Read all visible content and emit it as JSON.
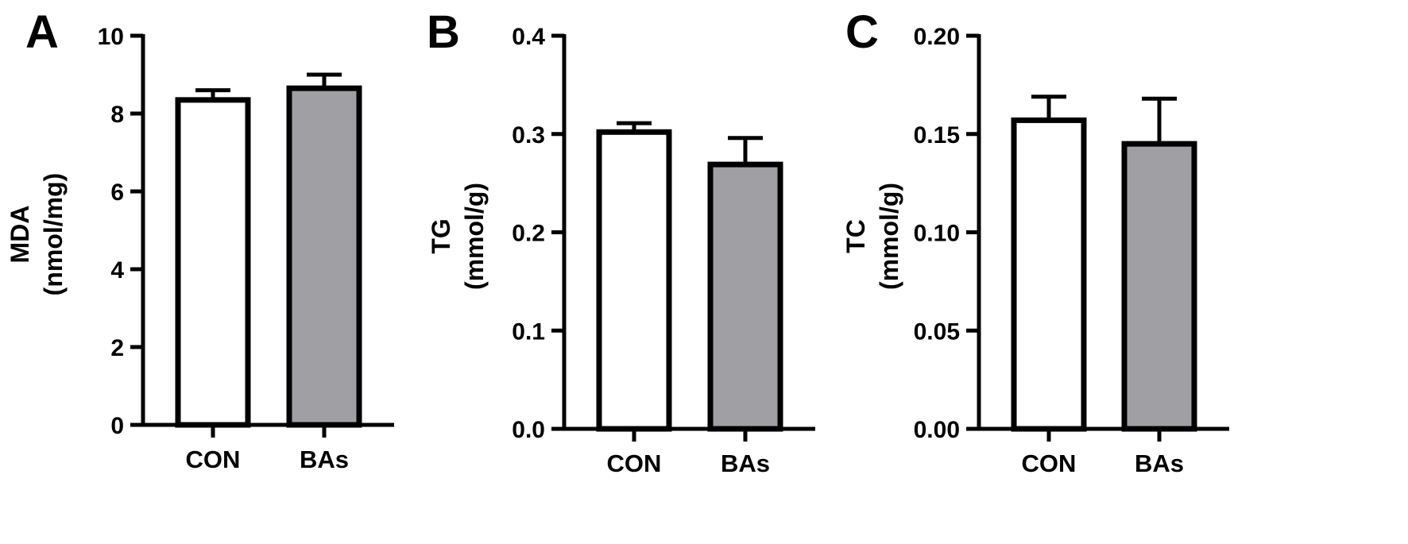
{
  "colors": {
    "axis": "#000000",
    "bar_outline": "#000000",
    "con_fill": "#ffffff",
    "bas_fill": "#a0a0a4",
    "background": "#ffffff"
  },
  "chart_data": [
    {
      "type": "bar",
      "panel": "A",
      "categories": [
        "CON",
        "BAs"
      ],
      "values": [
        8.35,
        8.65
      ],
      "errors": [
        0.25,
        0.35
      ],
      "ylabel": "MDA",
      "yunit": "(nmol/mg)",
      "ylim": [
        0,
        10
      ],
      "yticks": [
        "0",
        "2",
        "4",
        "6",
        "8",
        "10"
      ],
      "grid": false
    },
    {
      "type": "bar",
      "panel": "B",
      "categories": [
        "CON",
        "BAs"
      ],
      "values": [
        0.302,
        0.269
      ],
      "errors": [
        0.009,
        0.027
      ],
      "ylabel": "TG",
      "yunit": "(mmol/g)",
      "ylim": [
        0,
        0.4
      ],
      "yticks": [
        "0.0",
        "0.1",
        "0.2",
        "0.3",
        "0.4"
      ],
      "grid": false
    },
    {
      "type": "bar",
      "panel": "C",
      "categories": [
        "CON",
        "BAs"
      ],
      "values": [
        0.157,
        0.145
      ],
      "errors": [
        0.012,
        0.023
      ],
      "ylabel": "TC",
      "yunit": "(mmol/g)",
      "ylim": [
        0,
        0.2
      ],
      "yticks": [
        "0.00",
        "0.05",
        "0.10",
        "0.15",
        "0.20"
      ],
      "grid": false
    }
  ]
}
